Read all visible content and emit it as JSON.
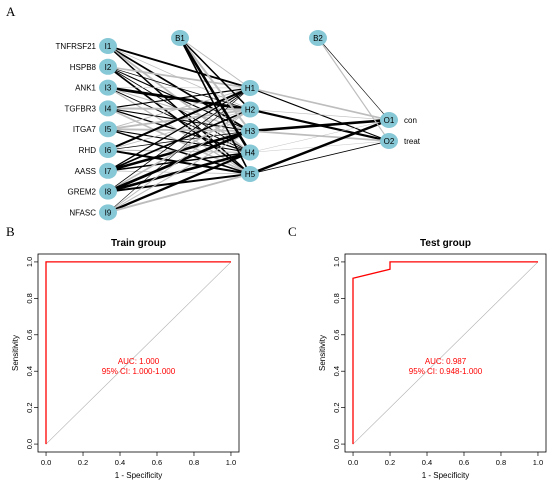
{
  "panels": {
    "a": "A",
    "b": "B",
    "c": "C"
  },
  "network": {
    "colors": {
      "node": "#86c8d6",
      "edge_dark": "#000000",
      "edge_light": "#bdbdbd"
    },
    "inputs": [
      {
        "id": "I1",
        "gene": "TNFRSF21"
      },
      {
        "id": "I2",
        "gene": "HSPB8"
      },
      {
        "id": "I3",
        "gene": "ANK1"
      },
      {
        "id": "I4",
        "gene": "TGFBR3"
      },
      {
        "id": "I5",
        "gene": "ITGA7"
      },
      {
        "id": "I6",
        "gene": "RHD"
      },
      {
        "id": "I7",
        "gene": "AASS"
      },
      {
        "id": "I8",
        "gene": "GREM2"
      },
      {
        "id": "I9",
        "gene": "NFASC"
      }
    ],
    "bias_nodes": [
      "B1",
      "B2"
    ],
    "hidden": [
      "H1",
      "H2",
      "H3",
      "H4",
      "H5"
    ],
    "outputs": [
      {
        "id": "O1",
        "label": "con"
      },
      {
        "id": "O2",
        "label": "treat"
      }
    ]
  },
  "chart_data": [
    {
      "type": "line",
      "title": "Train group",
      "xlabel": "1 - Specificity",
      "ylabel": "Sensitivity",
      "xlim": [
        0,
        1
      ],
      "ylim": [
        0,
        1
      ],
      "x_ticks": [
        "0.0",
        "0.2",
        "0.4",
        "0.6",
        "0.8",
        "1.0"
      ],
      "y_ticks": [
        "0.0",
        "0.2",
        "0.4",
        "0.6",
        "0.8",
        "1.0"
      ],
      "series": [
        {
          "x": [
            0,
            0,
            1
          ],
          "y": [
            0,
            1,
            1
          ],
          "color": "#ff0000"
        }
      ],
      "annotation": [
        "AUC: 1.000",
        "95% CI: 1.000-1.000"
      ]
    },
    {
      "type": "line",
      "title": "Test group",
      "xlabel": "1 - Specificity",
      "ylabel": "Sensitivity",
      "xlim": [
        0,
        1
      ],
      "ylim": [
        0,
        1
      ],
      "x_ticks": [
        "0.0",
        "0.2",
        "0.4",
        "0.6",
        "0.8",
        "1.0"
      ],
      "y_ticks": [
        "0.0",
        "0.2",
        "0.4",
        "0.6",
        "0.8",
        "1.0"
      ],
      "series": [
        {
          "x": [
            0,
            0,
            0.2,
            0.2,
            1
          ],
          "y": [
            0,
            0.91,
            0.96,
            1,
            1
          ],
          "color": "#ff0000"
        }
      ],
      "annotation": [
        "AUC: 0.987",
        "95% CI: 0.948-1.000"
      ]
    }
  ]
}
